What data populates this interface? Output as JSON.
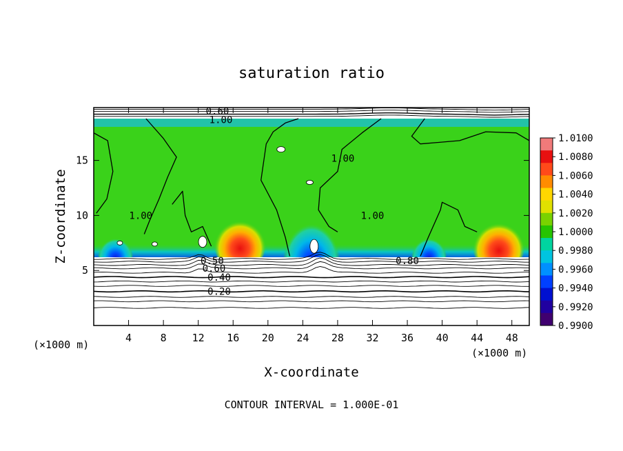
{
  "chart_data": {
    "type": "heatmap",
    "title": "saturation ratio",
    "xlabel": "X-coordinate",
    "ylabel": "Z-coordinate",
    "x_unit_left": "(×1000 m)",
    "x_unit_right": "(×1000 m)",
    "footer": "CONTOUR INTERVAL = 1.000E-01",
    "xlim": [
      0,
      50
    ],
    "ylim": [
      0,
      19.8
    ],
    "x_ticks": [
      4,
      8,
      12,
      16,
      20,
      24,
      28,
      32,
      36,
      40,
      44,
      48
    ],
    "y_ticks": [
      5,
      10,
      15
    ],
    "colorbar": {
      "levels": [
        "1.0100",
        "1.0080",
        "1.0060",
        "1.0040",
        "1.0020",
        "1.0000",
        "0.9980",
        "0.9960",
        "0.9940",
        "0.9920",
        "0.9900"
      ],
      "colors": [
        "#f07a7a",
        "#e81010",
        "#ff4a1a",
        "#ff8c00",
        "#ffd700",
        "#e0e000",
        "#7ad200",
        "#26c400",
        "#00d4a0",
        "#00c4e0",
        "#0090ff",
        "#0040ff",
        "#0010d0",
        "#2000a0",
        "#400070"
      ]
    },
    "background_colors": {
      "sat_field": "#3ad21a",
      "bright_band": "#22c3a8",
      "below_cloud": "#ffffff"
    },
    "contour_labels": [
      {
        "text": "0.60",
        "x": 14.2,
        "y": 19.5
      },
      {
        "text": "1.00",
        "x": 14.6,
        "y": 18.7
      },
      {
        "text": "1.00",
        "x": 5.4,
        "y": 10.0
      },
      {
        "text": "1.00",
        "x": 28.6,
        "y": 15.2
      },
      {
        "text": "1.00",
        "x": 32.0,
        "y": 10.0
      },
      {
        "text": "0.80",
        "x": 36.0,
        "y": 5.9
      },
      {
        "text": "0.50",
        "x": 13.6,
        "y": 5.9
      },
      {
        "text": "0.60",
        "x": 13.8,
        "y": 5.2
      },
      {
        "text": "0.40",
        "x": 14.4,
        "y": 4.4
      },
      {
        "text": "0.20",
        "x": 14.4,
        "y": 3.1
      }
    ],
    "warm_patches": [
      {
        "x": 16.8,
        "y": 7.5,
        "intensity": 1.006
      },
      {
        "x": 46.5,
        "y": 7.3,
        "intensity": 1.006
      }
    ],
    "cool_patches": [
      {
        "x": 25.0,
        "y": 7.0,
        "intensity": 0.992
      },
      {
        "x": 2.5,
        "y": 6.8,
        "intensity": 0.994
      },
      {
        "x": 38.5,
        "y": 6.8,
        "intensity": 0.995
      }
    ]
  }
}
